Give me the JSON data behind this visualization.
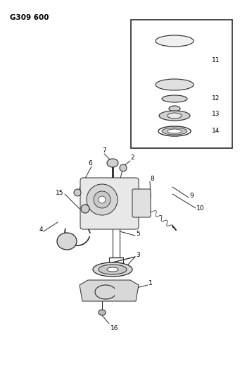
{
  "title": "G309 600",
  "bg_color": "#ffffff",
  "lc": "#2a2a2a",
  "tc": "#000000",
  "fig_w": 3.41,
  "fig_h": 5.33,
  "dpi": 100,
  "lw": 0.7,
  "fs": 6.5
}
